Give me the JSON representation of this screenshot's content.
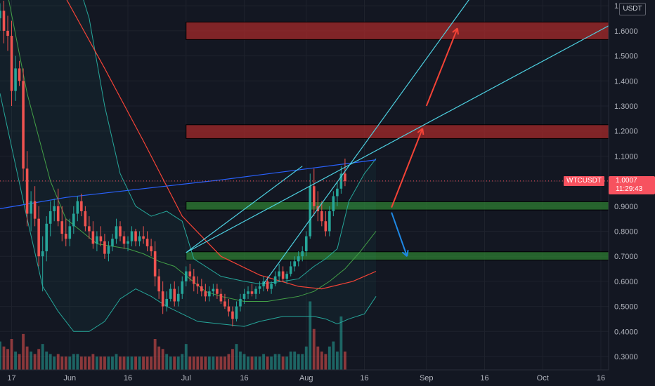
{
  "chart_data": {
    "type": "candlestick",
    "symbol": "WTCUSDT",
    "currency": "USDT",
    "last_price": "1.0007",
    "countdown": "11:29:43",
    "y_axis": {
      "range": [
        0.26,
        1.7
      ],
      "ticks": [
        "1.7000",
        "1.6000",
        "1.5000",
        "1.4000",
        "1.3000",
        "1.2000",
        "1.1000",
        "1.0000",
        "0.9000",
        "0.8000",
        "0.7000",
        "0.6000",
        "0.5000",
        "0.4000",
        "0.3000"
      ],
      "tick_values": [
        1.7,
        1.6,
        1.5,
        1.4,
        1.3,
        1.2,
        1.1,
        1.0,
        0.9,
        0.8,
        0.7,
        0.6,
        0.5,
        0.4,
        0.3
      ]
    },
    "x_axis": {
      "labels": [
        "17",
        "Jun",
        "16",
        "Jul",
        "16",
        "Aug",
        "16",
        "Sep",
        "16",
        "Oct",
        "16"
      ],
      "label_days": [
        -14,
        1,
        16,
        31,
        46,
        62,
        77,
        93,
        108,
        123,
        138
      ],
      "day_range": [
        -17,
        140
      ]
    },
    "colors": {
      "background": "#131722",
      "up": "#26a69a",
      "down": "#ef5350",
      "resistance": "#a52a2a",
      "support": "#2e7d32",
      "long_ma": "#2962ff",
      "mid_ma": "#f44336",
      "bands": "#26a69a",
      "trendline": "#4dd0e1",
      "arrow_up": "#f44336",
      "arrow_down": "#1e88e5"
    },
    "zones": [
      {
        "kind": "resistance",
        "from": 1.565,
        "to": 1.635,
        "start_day": 31,
        "end_day": 140
      },
      {
        "kind": "resistance",
        "from": 1.17,
        "to": 1.225,
        "start_day": 31,
        "end_day": 140
      },
      {
        "kind": "support",
        "from": 0.885,
        "to": 0.918,
        "start_day": 31,
        "end_day": 140
      },
      {
        "kind": "support",
        "from": 0.685,
        "to": 0.718,
        "start_day": 31,
        "end_day": 140
      }
    ],
    "trendlines": [
      {
        "from": [
          31,
          0.715
        ],
        "to": [
          140,
          1.62
        ]
      },
      {
        "from": [
          51,
          0.59
        ],
        "to": [
          108,
          1.81
        ]
      },
      {
        "from": [
          31,
          0.715
        ],
        "to": [
          61,
          1.06
        ]
      }
    ],
    "arrows": [
      {
        "kind": "up",
        "from": [
          84,
          0.895
        ],
        "to": [
          92,
          1.21
        ]
      },
      {
        "kind": "up",
        "from": [
          93,
          1.3
        ],
        "to": [
          101,
          1.61
        ]
      },
      {
        "kind": "down",
        "from": [
          84,
          0.875
        ],
        "to": [
          88,
          0.7
        ]
      }
    ],
    "long_ma": [
      [
        -17,
        0.89
      ],
      [
        0,
        0.935
      ],
      [
        20,
        0.97
      ],
      [
        40,
        1.005
      ],
      [
        60,
        1.045
      ],
      [
        80,
        1.085
      ]
    ],
    "mid_ma": [
      [
        -17,
        2.1
      ],
      [
        0,
        1.73
      ],
      [
        10,
        1.45
      ],
      [
        20,
        1.16
      ],
      [
        30,
        0.86
      ],
      [
        40,
        0.7
      ],
      [
        50,
        0.625
      ],
      [
        60,
        0.58
      ],
      [
        66,
        0.57
      ],
      [
        74,
        0.6
      ],
      [
        80,
        0.64
      ]
    ],
    "upper_band": [
      [
        -17,
        2.4
      ],
      [
        0,
        1.95
      ],
      [
        6,
        1.65
      ],
      [
        10,
        1.3
      ],
      [
        14,
        1.03
      ],
      [
        18,
        0.9
      ],
      [
        22,
        0.86
      ],
      [
        26,
        0.88
      ],
      [
        30,
        0.84
      ],
      [
        33,
        0.69
      ],
      [
        40,
        0.62
      ],
      [
        46,
        0.6
      ],
      [
        50,
        0.59
      ],
      [
        56,
        0.6
      ],
      [
        60,
        0.61
      ],
      [
        64,
        0.66
      ],
      [
        67,
        0.69
      ],
      [
        70,
        0.73
      ],
      [
        73,
        0.92
      ],
      [
        77,
        1.03
      ],
      [
        80,
        1.09
      ]
    ],
    "lower_band": [
      [
        -17,
        1.35
      ],
      [
        -10,
        0.85
      ],
      [
        -6,
        0.58
      ],
      [
        -2,
        0.48
      ],
      [
        2,
        0.4
      ],
      [
        6,
        0.4
      ],
      [
        10,
        0.44
      ],
      [
        14,
        0.53
      ],
      [
        18,
        0.57
      ],
      [
        22,
        0.54
      ],
      [
        26,
        0.5
      ],
      [
        30,
        0.47
      ],
      [
        34,
        0.44
      ],
      [
        40,
        0.43
      ],
      [
        46,
        0.42
      ],
      [
        50,
        0.44
      ],
      [
        56,
        0.46
      ],
      [
        60,
        0.46
      ],
      [
        64,
        0.46
      ],
      [
        67,
        0.45
      ],
      [
        70,
        0.43
      ],
      [
        73,
        0.45
      ],
      [
        77,
        0.47
      ],
      [
        80,
        0.54
      ]
    ],
    "mid_band": [
      [
        -17,
        1.9
      ],
      [
        -10,
        1.35
      ],
      [
        -4,
        1.0
      ],
      [
        0,
        0.85
      ],
      [
        4,
        0.8
      ],
      [
        8,
        0.75
      ],
      [
        12,
        0.74
      ],
      [
        16,
        0.73
      ],
      [
        20,
        0.71
      ],
      [
        24,
        0.68
      ],
      [
        28,
        0.66
      ],
      [
        32,
        0.61
      ],
      [
        36,
        0.56
      ],
      [
        40,
        0.54
      ],
      [
        46,
        0.52
      ],
      [
        52,
        0.52
      ],
      [
        56,
        0.53
      ],
      [
        60,
        0.54
      ],
      [
        64,
        0.56
      ],
      [
        68,
        0.6
      ],
      [
        72,
        0.65
      ],
      [
        76,
        0.72
      ],
      [
        80,
        0.8
      ]
    ],
    "candles": [
      [
        -17,
        1.65,
        1.71,
        1.6,
        1.68
      ],
      [
        -16,
        1.68,
        1.72,
        1.55,
        1.6
      ],
      [
        -15,
        1.6,
        1.66,
        1.52,
        1.58
      ],
      [
        -14,
        1.58,
        1.64,
        1.3,
        1.36
      ],
      [
        -13,
        1.36,
        1.5,
        1.32,
        1.45
      ],
      [
        -12,
        1.45,
        1.48,
        1.38,
        1.4
      ],
      [
        -11,
        1.4,
        1.45,
        1.0,
        1.05
      ],
      [
        -10,
        1.05,
        1.12,
        0.82,
        0.87
      ],
      [
        -9,
        0.87,
        0.96,
        0.8,
        0.92
      ],
      [
        -8,
        0.92,
        0.98,
        0.82,
        0.85
      ],
      [
        -7,
        0.85,
        0.9,
        0.66,
        0.7
      ],
      [
        -6,
        0.7,
        0.78,
        0.56,
        0.72
      ],
      [
        -5,
        0.72,
        0.86,
        0.68,
        0.83
      ],
      [
        -4,
        0.83,
        0.92,
        0.78,
        0.88
      ],
      [
        -3,
        0.88,
        0.93,
        0.84,
        0.9
      ],
      [
        -2,
        0.9,
        0.97,
        0.82,
        0.84
      ],
      [
        -1,
        0.84,
        0.9,
        0.76,
        0.79
      ],
      [
        0,
        0.79,
        0.85,
        0.74,
        0.77
      ],
      [
        1,
        0.77,
        0.85,
        0.74,
        0.82
      ],
      [
        2,
        0.82,
        0.9,
        0.79,
        0.87
      ],
      [
        3,
        0.87,
        0.94,
        0.84,
        0.92
      ],
      [
        4,
        0.92,
        0.95,
        0.86,
        0.88
      ],
      [
        5,
        0.88,
        0.9,
        0.8,
        0.82
      ],
      [
        6,
        0.82,
        0.86,
        0.77,
        0.8
      ],
      [
        7,
        0.8,
        0.84,
        0.73,
        0.75
      ],
      [
        8,
        0.75,
        0.8,
        0.72,
        0.78
      ],
      [
        9,
        0.78,
        0.82,
        0.74,
        0.76
      ],
      [
        10,
        0.76,
        0.79,
        0.69,
        0.71
      ],
      [
        11,
        0.71,
        0.76,
        0.68,
        0.74
      ],
      [
        12,
        0.74,
        0.79,
        0.72,
        0.77
      ],
      [
        13,
        0.77,
        0.85,
        0.75,
        0.82
      ],
      [
        14,
        0.82,
        0.84,
        0.76,
        0.78
      ],
      [
        15,
        0.78,
        0.8,
        0.73,
        0.75
      ],
      [
        16,
        0.75,
        0.78,
        0.72,
        0.76
      ],
      [
        17,
        0.76,
        0.82,
        0.74,
        0.8
      ],
      [
        18,
        0.8,
        0.81,
        0.74,
        0.76
      ],
      [
        19,
        0.76,
        0.8,
        0.74,
        0.78
      ],
      [
        20,
        0.78,
        0.82,
        0.75,
        0.77
      ],
      [
        21,
        0.77,
        0.8,
        0.72,
        0.74
      ],
      [
        22,
        0.74,
        0.77,
        0.7,
        0.72
      ],
      [
        23,
        0.72,
        0.76,
        0.58,
        0.62
      ],
      [
        24,
        0.62,
        0.65,
        0.53,
        0.56
      ],
      [
        25,
        0.56,
        0.6,
        0.47,
        0.5
      ],
      [
        26,
        0.5,
        0.56,
        0.48,
        0.53
      ],
      [
        27,
        0.53,
        0.59,
        0.52,
        0.57
      ],
      [
        28,
        0.57,
        0.6,
        0.5,
        0.52
      ],
      [
        29,
        0.52,
        0.58,
        0.5,
        0.55
      ],
      [
        30,
        0.55,
        0.62,
        0.53,
        0.6
      ],
      [
        31,
        0.6,
        0.66,
        0.58,
        0.64
      ],
      [
        32,
        0.64,
        0.67,
        0.6,
        0.62
      ],
      [
        33,
        0.62,
        0.65,
        0.56,
        0.59
      ],
      [
        34,
        0.59,
        0.62,
        0.55,
        0.58
      ],
      [
        35,
        0.58,
        0.61,
        0.54,
        0.56
      ],
      [
        36,
        0.56,
        0.59,
        0.52,
        0.54
      ],
      [
        37,
        0.54,
        0.58,
        0.52,
        0.56
      ],
      [
        38,
        0.56,
        0.59,
        0.54,
        0.57
      ],
      [
        39,
        0.57,
        0.59,
        0.53,
        0.55
      ],
      [
        40,
        0.55,
        0.57,
        0.51,
        0.52
      ],
      [
        41,
        0.52,
        0.55,
        0.49,
        0.5
      ],
      [
        42,
        0.5,
        0.53,
        0.46,
        0.48
      ],
      [
        43,
        0.48,
        0.5,
        0.42,
        0.45
      ],
      [
        44,
        0.45,
        0.52,
        0.44,
        0.5
      ],
      [
        45,
        0.5,
        0.55,
        0.48,
        0.53
      ],
      [
        46,
        0.53,
        0.57,
        0.51,
        0.55
      ],
      [
        47,
        0.55,
        0.58,
        0.53,
        0.56
      ],
      [
        48,
        0.56,
        0.59,
        0.54,
        0.55
      ],
      [
        49,
        0.55,
        0.58,
        0.53,
        0.57
      ],
      [
        50,
        0.57,
        0.6,
        0.55,
        0.58
      ],
      [
        51,
        0.58,
        0.62,
        0.56,
        0.6
      ],
      [
        52,
        0.6,
        0.62,
        0.56,
        0.57
      ],
      [
        53,
        0.57,
        0.6,
        0.55,
        0.59
      ],
      [
        54,
        0.59,
        0.64,
        0.58,
        0.62
      ],
      [
        55,
        0.62,
        0.67,
        0.6,
        0.64
      ],
      [
        56,
        0.64,
        0.66,
        0.6,
        0.61
      ],
      [
        57,
        0.61,
        0.64,
        0.59,
        0.63
      ],
      [
        58,
        0.63,
        0.68,
        0.62,
        0.66
      ],
      [
        59,
        0.66,
        0.7,
        0.64,
        0.68
      ],
      [
        60,
        0.68,
        0.72,
        0.66,
        0.7
      ],
      [
        61,
        0.7,
        0.74,
        0.68,
        0.72
      ],
      [
        62,
        0.72,
        0.8,
        0.7,
        0.78
      ],
      [
        63,
        0.78,
        1.03,
        0.77,
        0.98
      ],
      [
        64,
        0.98,
        1.05,
        0.86,
        0.9
      ],
      [
        65,
        0.9,
        0.96,
        0.84,
        0.88
      ],
      [
        66,
        0.88,
        0.92,
        0.82,
        0.84
      ],
      [
        67,
        0.84,
        0.88,
        0.78,
        0.8
      ],
      [
        68,
        0.8,
        0.9,
        0.78,
        0.88
      ],
      [
        69,
        0.88,
        0.96,
        0.86,
        0.94
      ],
      [
        70,
        0.94,
        1.0,
        0.9,
        0.97
      ],
      [
        71,
        0.97,
        1.06,
        0.95,
        1.03
      ],
      [
        72,
        1.03,
        1.09,
        0.98,
        1.0
      ]
    ],
    "volumes": [
      [
        -17,
        0.36,
        1
      ],
      [
        -16,
        0.34,
        0
      ],
      [
        -15,
        0.33,
        0
      ],
      [
        -14,
        0.37,
        0
      ],
      [
        -13,
        0.32,
        1
      ],
      [
        -12,
        0.31,
        0
      ],
      [
        -11,
        0.39,
        0
      ],
      [
        -10,
        0.34,
        0
      ],
      [
        -9,
        0.32,
        1
      ],
      [
        -8,
        0.31,
        0
      ],
      [
        -7,
        0.33,
        0
      ],
      [
        -6,
        0.35,
        1
      ],
      [
        -5,
        0.32,
        1
      ],
      [
        -4,
        0.31,
        1
      ],
      [
        -3,
        0.3,
        1
      ],
      [
        -2,
        0.31,
        0
      ],
      [
        -1,
        0.3,
        0
      ],
      [
        0,
        0.3,
        0
      ],
      [
        1,
        0.3,
        1
      ],
      [
        2,
        0.31,
        1
      ],
      [
        3,
        0.31,
        1
      ],
      [
        4,
        0.3,
        0
      ],
      [
        5,
        0.3,
        0
      ],
      [
        6,
        0.3,
        0
      ],
      [
        7,
        0.31,
        0
      ],
      [
        8,
        0.3,
        1
      ],
      [
        9,
        0.3,
        0
      ],
      [
        10,
        0.3,
        0
      ],
      [
        11,
        0.3,
        1
      ],
      [
        12,
        0.3,
        1
      ],
      [
        13,
        0.31,
        1
      ],
      [
        14,
        0.3,
        0
      ],
      [
        15,
        0.3,
        0
      ],
      [
        16,
        0.3,
        1
      ],
      [
        17,
        0.3,
        1
      ],
      [
        18,
        0.3,
        0
      ],
      [
        19,
        0.3,
        1
      ],
      [
        20,
        0.3,
        0
      ],
      [
        21,
        0.3,
        0
      ],
      [
        22,
        0.3,
        0
      ],
      [
        23,
        0.37,
        0
      ],
      [
        24,
        0.34,
        0
      ],
      [
        25,
        0.33,
        0
      ],
      [
        26,
        0.31,
        1
      ],
      [
        27,
        0.3,
        1
      ],
      [
        28,
        0.3,
        0
      ],
      [
        29,
        0.3,
        1
      ],
      [
        30,
        0.31,
        1
      ],
      [
        31,
        0.35,
        1
      ],
      [
        32,
        0.3,
        0
      ],
      [
        33,
        0.3,
        0
      ],
      [
        34,
        0.3,
        0
      ],
      [
        35,
        0.3,
        0
      ],
      [
        36,
        0.3,
        0
      ],
      [
        37,
        0.3,
        1
      ],
      [
        38,
        0.3,
        1
      ],
      [
        39,
        0.3,
        0
      ],
      [
        40,
        0.3,
        0
      ],
      [
        41,
        0.3,
        0
      ],
      [
        42,
        0.31,
        0
      ],
      [
        43,
        0.33,
        0
      ],
      [
        44,
        0.35,
        1
      ],
      [
        45,
        0.32,
        1
      ],
      [
        46,
        0.31,
        1
      ],
      [
        47,
        0.3,
        1
      ],
      [
        48,
        0.3,
        0
      ],
      [
        49,
        0.3,
        1
      ],
      [
        50,
        0.3,
        1
      ],
      [
        51,
        0.31,
        1
      ],
      [
        52,
        0.3,
        0
      ],
      [
        53,
        0.3,
        1
      ],
      [
        54,
        0.31,
        1
      ],
      [
        55,
        0.31,
        1
      ],
      [
        56,
        0.3,
        0
      ],
      [
        57,
        0.3,
        1
      ],
      [
        58,
        0.32,
        1
      ],
      [
        59,
        0.32,
        1
      ],
      [
        60,
        0.31,
        1
      ],
      [
        61,
        0.31,
        1
      ],
      [
        62,
        0.34,
        1
      ],
      [
        63,
        0.52,
        1
      ],
      [
        64,
        0.41,
        0
      ],
      [
        65,
        0.34,
        0
      ],
      [
        66,
        0.32,
        0
      ],
      [
        67,
        0.31,
        0
      ],
      [
        68,
        0.34,
        1
      ],
      [
        69,
        0.36,
        1
      ],
      [
        70,
        0.32,
        1
      ],
      [
        71,
        0.46,
        1
      ],
      [
        72,
        0.32,
        0
      ]
    ]
  }
}
